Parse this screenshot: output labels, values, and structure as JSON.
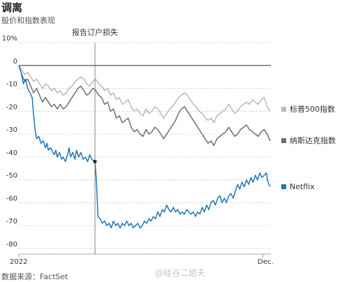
{
  "header": {
    "title": "调离",
    "subtitle": "股价和指数表现"
  },
  "footer": {
    "source": "数据来源：FactSet",
    "watermark": "@硅谷二姐夫"
  },
  "chart_data": {
    "type": "line",
    "title": "调离",
    "subtitle": "股价和指数表现",
    "ylim": [
      -80,
      10
    ],
    "yticks": [
      10,
      0,
      -10,
      -20,
      -30,
      -40,
      -50,
      -60,
      -70,
      -80
    ],
    "ytick_labels": [
      "10%",
      "0",
      "-10",
      "-20",
      "-30",
      "-40",
      "-50",
      "-60",
      "-70",
      "-80"
    ],
    "xrange": [
      0,
      340
    ],
    "xtick_labels": [
      {
        "x": 0,
        "label": "2022"
      },
      {
        "x": 330,
        "label": "Dec."
      }
    ],
    "grid": "horizontal dotted",
    "legend": "right",
    "annotation": {
      "label": "报告订户损失",
      "x": 103,
      "y": -42
    },
    "series": [
      {
        "name": "标普500指数",
        "color": "#b9b9b9",
        "points": [
          [
            0,
            0
          ],
          [
            4,
            -2
          ],
          [
            8,
            -4
          ],
          [
            12,
            -3
          ],
          [
            16,
            -5
          ],
          [
            20,
            -7
          ],
          [
            24,
            -6
          ],
          [
            28,
            -8
          ],
          [
            32,
            -10
          ],
          [
            36,
            -8
          ],
          [
            40,
            -9
          ],
          [
            44,
            -11
          ],
          [
            48,
            -10
          ],
          [
            52,
            -12
          ],
          [
            56,
            -11
          ],
          [
            60,
            -13
          ],
          [
            64,
            -12
          ],
          [
            68,
            -10
          ],
          [
            72,
            -9
          ],
          [
            76,
            -7
          ],
          [
            80,
            -6
          ],
          [
            84,
            -5
          ],
          [
            88,
            -6
          ],
          [
            92,
            -8
          ],
          [
            96,
            -9
          ],
          [
            100,
            -7
          ],
          [
            104,
            -6
          ],
          [
            108,
            -8
          ],
          [
            112,
            -9
          ],
          [
            116,
            -11
          ],
          [
            120,
            -10
          ],
          [
            124,
            -13
          ],
          [
            128,
            -12
          ],
          [
            132,
            -15
          ],
          [
            136,
            -14
          ],
          [
            140,
            -17
          ],
          [
            144,
            -16
          ],
          [
            148,
            -15
          ],
          [
            152,
            -18
          ],
          [
            156,
            -20
          ],
          [
            160,
            -19
          ],
          [
            164,
            -21
          ],
          [
            168,
            -22
          ],
          [
            172,
            -19
          ],
          [
            176,
            -21
          ],
          [
            180,
            -20
          ],
          [
            184,
            -18
          ],
          [
            188,
            -19
          ],
          [
            192,
            -21
          ],
          [
            196,
            -23
          ],
          [
            200,
            -21
          ],
          [
            204,
            -19
          ],
          [
            208,
            -18
          ],
          [
            212,
            -16
          ],
          [
            216,
            -14
          ],
          [
            220,
            -13
          ],
          [
            224,
            -12
          ],
          [
            228,
            -13
          ],
          [
            232,
            -15
          ],
          [
            236,
            -17
          ],
          [
            240,
            -18
          ],
          [
            244,
            -20
          ],
          [
            248,
            -21
          ],
          [
            252,
            -23
          ],
          [
            256,
            -24
          ],
          [
            260,
            -23
          ],
          [
            264,
            -25
          ],
          [
            268,
            -22
          ],
          [
            272,
            -21
          ],
          [
            276,
            -20
          ],
          [
            280,
            -19
          ],
          [
            284,
            -17
          ],
          [
            288,
            -19
          ],
          [
            292,
            -21
          ],
          [
            296,
            -20
          ],
          [
            300,
            -18
          ],
          [
            304,
            -17
          ],
          [
            308,
            -16
          ],
          [
            312,
            -17
          ],
          [
            316,
            -15
          ],
          [
            320,
            -16
          ],
          [
            324,
            -17
          ],
          [
            328,
            -15
          ],
          [
            332,
            -14
          ],
          [
            336,
            -18
          ],
          [
            340,
            -20
          ]
        ]
      },
      {
        "name": "纳斯达克指数",
        "color": "#6e6e6e",
        "points": [
          [
            0,
            0
          ],
          [
            4,
            -4
          ],
          [
            8,
            -7
          ],
          [
            12,
            -6
          ],
          [
            16,
            -9
          ],
          [
            20,
            -12
          ],
          [
            24,
            -10
          ],
          [
            28,
            -13
          ],
          [
            32,
            -16
          ],
          [
            36,
            -14
          ],
          [
            40,
            -16
          ],
          [
            44,
            -18
          ],
          [
            48,
            -17
          ],
          [
            52,
            -19
          ],
          [
            56,
            -17
          ],
          [
            60,
            -19
          ],
          [
            64,
            -18
          ],
          [
            68,
            -16
          ],
          [
            72,
            -14
          ],
          [
            76,
            -12
          ],
          [
            80,
            -10
          ],
          [
            84,
            -9
          ],
          [
            88,
            -11
          ],
          [
            92,
            -13
          ],
          [
            96,
            -12
          ],
          [
            100,
            -10
          ],
          [
            104,
            -11
          ],
          [
            108,
            -13
          ],
          [
            112,
            -14
          ],
          [
            116,
            -17
          ],
          [
            120,
            -16
          ],
          [
            124,
            -20
          ],
          [
            128,
            -19
          ],
          [
            132,
            -23
          ],
          [
            136,
            -22
          ],
          [
            140,
            -25
          ],
          [
            144,
            -24
          ],
          [
            148,
            -23
          ],
          [
            152,
            -27
          ],
          [
            156,
            -29
          ],
          [
            160,
            -28
          ],
          [
            164,
            -30
          ],
          [
            168,
            -31
          ],
          [
            172,
            -28
          ],
          [
            176,
            -30
          ],
          [
            180,
            -29
          ],
          [
            184,
            -27
          ],
          [
            188,
            -28
          ],
          [
            192,
            -30
          ],
          [
            196,
            -32
          ],
          [
            200,
            -30
          ],
          [
            204,
            -28
          ],
          [
            208,
            -26
          ],
          [
            212,
            -24
          ],
          [
            216,
            -21
          ],
          [
            220,
            -19
          ],
          [
            224,
            -18
          ],
          [
            228,
            -20
          ],
          [
            232,
            -22
          ],
          [
            236,
            -24
          ],
          [
            240,
            -26
          ],
          [
            244,
            -28
          ],
          [
            248,
            -30
          ],
          [
            252,
            -32
          ],
          [
            256,
            -34
          ],
          [
            260,
            -33
          ],
          [
            264,
            -35
          ],
          [
            268,
            -32
          ],
          [
            272,
            -31
          ],
          [
            276,
            -30
          ],
          [
            280,
            -29
          ],
          [
            284,
            -27
          ],
          [
            288,
            -29
          ],
          [
            292,
            -31
          ],
          [
            296,
            -30
          ],
          [
            300,
            -28
          ],
          [
            304,
            -27
          ],
          [
            308,
            -26
          ],
          [
            312,
            -28
          ],
          [
            316,
            -29
          ],
          [
            320,
            -30
          ],
          [
            324,
            -31
          ],
          [
            328,
            -29
          ],
          [
            332,
            -28
          ],
          [
            336,
            -30
          ],
          [
            340,
            -33
          ]
        ]
      },
      {
        "name": "Netflix",
        "color": "#1f77b4",
        "points": [
          [
            0,
            0
          ],
          [
            3,
            -3
          ],
          [
            6,
            -8
          ],
          [
            9,
            -6
          ],
          [
            12,
            -10
          ],
          [
            15,
            -12
          ],
          [
            18,
            -14
          ],
          [
            20,
            -22
          ],
          [
            22,
            -28
          ],
          [
            24,
            -32
          ],
          [
            27,
            -31
          ],
          [
            30,
            -34
          ],
          [
            33,
            -33
          ],
          [
            36,
            -36
          ],
          [
            38,
            -34
          ],
          [
            40,
            -37
          ],
          [
            43,
            -36
          ],
          [
            46,
            -38
          ],
          [
            48,
            -39
          ],
          [
            50,
            -37
          ],
          [
            52,
            -40
          ],
          [
            55,
            -38
          ],
          [
            58,
            -41
          ],
          [
            60,
            -40
          ],
          [
            63,
            -42
          ],
          [
            66,
            -39
          ],
          [
            68,
            -36
          ],
          [
            70,
            -40
          ],
          [
            73,
            -38
          ],
          [
            76,
            -41
          ],
          [
            78,
            -37
          ],
          [
            81,
            -40
          ],
          [
            84,
            -38
          ],
          [
            87,
            -41
          ],
          [
            90,
            -40
          ],
          [
            93,
            -42
          ],
          [
            96,
            -39
          ],
          [
            99,
            -41
          ],
          [
            102,
            -42
          ],
          [
            103,
            -42
          ],
          [
            105,
            -51
          ],
          [
            107,
            -66
          ],
          [
            110,
            -67
          ],
          [
            113,
            -69
          ],
          [
            116,
            -68
          ],
          [
            119,
            -70
          ],
          [
            122,
            -69
          ],
          [
            125,
            -71
          ],
          [
            128,
            -68
          ],
          [
            131,
            -70
          ],
          [
            134,
            -69
          ],
          [
            137,
            -71
          ],
          [
            140,
            -69
          ],
          [
            143,
            -70
          ],
          [
            146,
            -68
          ],
          [
            149,
            -70
          ],
          [
            152,
            -69
          ],
          [
            155,
            -71
          ],
          [
            158,
            -70
          ],
          [
            161,
            -69
          ],
          [
            164,
            -71
          ],
          [
            167,
            -70
          ],
          [
            170,
            -68
          ],
          [
            173,
            -69
          ],
          [
            176,
            -67
          ],
          [
            179,
            -68
          ],
          [
            182,
            -66
          ],
          [
            185,
            -67
          ],
          [
            188,
            -64
          ],
          [
            191,
            -66
          ],
          [
            194,
            -63
          ],
          [
            197,
            -64
          ],
          [
            200,
            -61
          ],
          [
            203,
            -63
          ],
          [
            206,
            -64
          ],
          [
            209,
            -62
          ],
          [
            212,
            -64
          ],
          [
            215,
            -63
          ],
          [
            218,
            -65
          ],
          [
            221,
            -64
          ],
          [
            224,
            -65
          ],
          [
            227,
            -63
          ],
          [
            230,
            -64
          ],
          [
            233,
            -65
          ],
          [
            236,
            -64
          ],
          [
            239,
            -66
          ],
          [
            242,
            -64
          ],
          [
            245,
            -65
          ],
          [
            248,
            -62
          ],
          [
            251,
            -64
          ],
          [
            254,
            -61
          ],
          [
            257,
            -63
          ],
          [
            260,
            -60
          ],
          [
            263,
            -59
          ],
          [
            266,
            -61
          ],
          [
            269,
            -58
          ],
          [
            272,
            -57
          ],
          [
            275,
            -60
          ],
          [
            278,
            -58
          ],
          [
            281,
            -60
          ],
          [
            284,
            -57
          ],
          [
            287,
            -56
          ],
          [
            290,
            -58
          ],
          [
            293,
            -55
          ],
          [
            296,
            -52
          ],
          [
            299,
            -54
          ],
          [
            302,
            -51
          ],
          [
            305,
            -53
          ],
          [
            308,
            -50
          ],
          [
            311,
            -52
          ],
          [
            314,
            -49
          ],
          [
            317,
            -51
          ],
          [
            320,
            -48
          ],
          [
            323,
            -50
          ],
          [
            326,
            -47
          ],
          [
            329,
            -49
          ],
          [
            332,
            -48
          ],
          [
            335,
            -47
          ],
          [
            337,
            -51
          ],
          [
            340,
            -53
          ]
        ]
      }
    ]
  }
}
